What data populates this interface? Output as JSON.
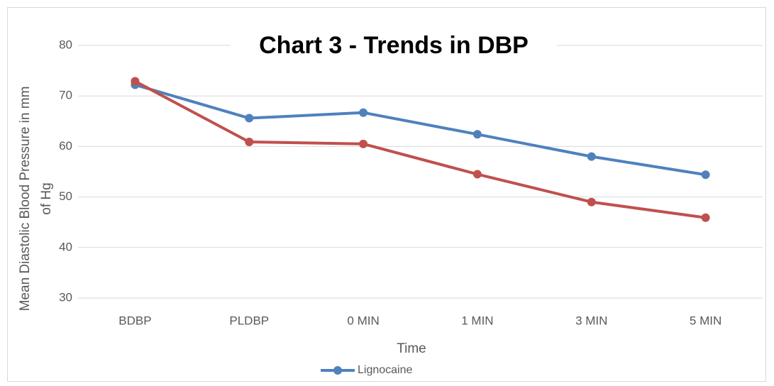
{
  "chart_data": {
    "type": "line",
    "title": "Chart 3 - Trends in DBP",
    "x_label": "Time",
    "y_label": [
      "Mean Diastolic  Blood Pressure in mm",
      "of Hg"
    ],
    "categories": [
      "BDBP",
      "PLDBP",
      "0 MIN",
      "1  MIN",
      "3 MIN",
      "5 MIN"
    ],
    "series": [
      {
        "name": "Lignocaine",
        "color": "#4f81bd",
        "values": [
          72.2,
          65.6,
          66.7,
          62.4,
          58.0,
          54.4
        ]
      },
      {
        "color": "#c0504d",
        "values": [
          72.9,
          60.9,
          60.5,
          54.5,
          49.0,
          45.9
        ]
      }
    ],
    "ylim": [
      30,
      80
    ],
    "yticks": [
      30,
      40,
      50,
      60,
      70,
      80
    ],
    "grid": true
  }
}
